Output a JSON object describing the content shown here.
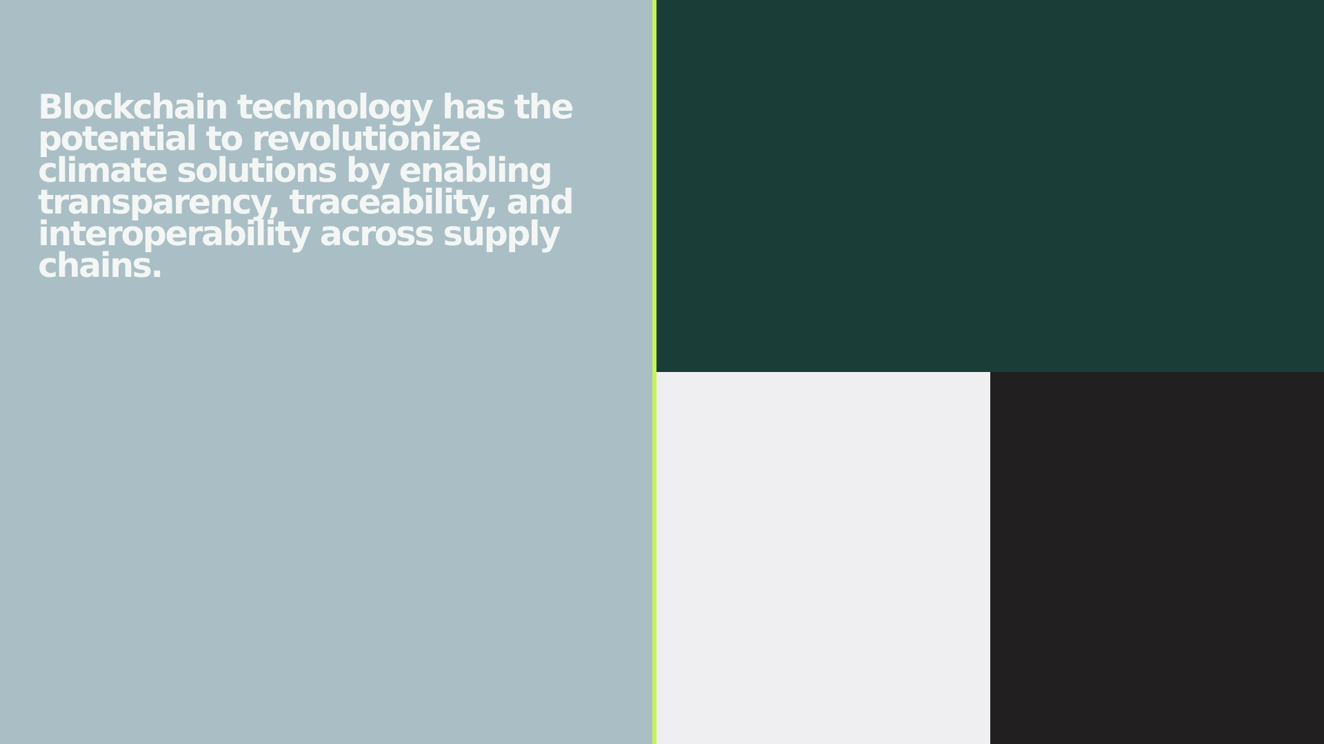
{
  "quote": {
    "text": "Blockchain technology has the potential to revolutionize climate solutions by enabling transparency, traceability, and interoperability across supply chains."
  },
  "colors": {
    "left_panel": "#A9BFC5",
    "quote_text": "#F4F6F6",
    "divider_accent": "#C6F45B",
    "block_top": "#1A3D37",
    "block_bottom_left": "#EFEFF1",
    "block_bottom_right": "#221F20"
  }
}
